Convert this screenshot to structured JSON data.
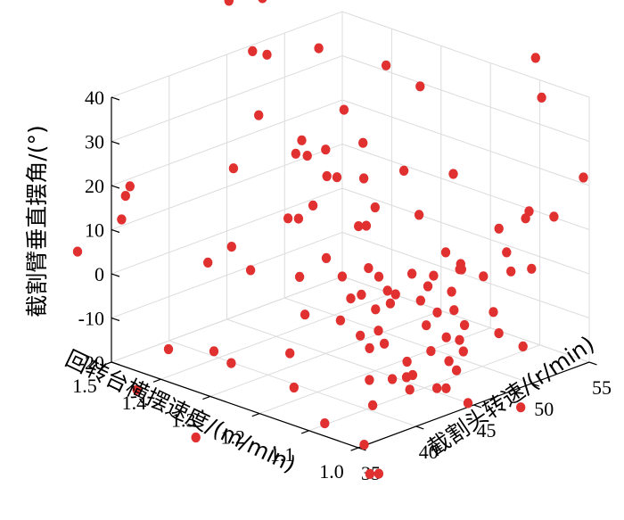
{
  "chart_data": {
    "type": "scatter3d",
    "x_axis": {
      "label": "截割头转速/(r/min)",
      "range": [
        35,
        55
      ],
      "ticks": [
        35,
        40,
        45,
        50,
        55
      ],
      "tick_labels": [
        "35",
        "40",
        "45",
        "50",
        "55"
      ]
    },
    "y_axis": {
      "label": "回转台横摆速度/(m/min)",
      "range": [
        1.0,
        1.5
      ],
      "ticks": [
        1.0,
        1.1,
        1.2,
        1.3,
        1.4,
        1.5
      ],
      "tick_labels": [
        "1.0",
        "1.1",
        "1.2",
        "1.3",
        "1.4",
        "1.5"
      ]
    },
    "z_axis": {
      "label": "截割臂垂直摆角/(°)",
      "range": [
        -20,
        40
      ],
      "ticks": [
        -20,
        -10,
        0,
        10,
        20,
        30,
        40
      ],
      "tick_labels": [
        "-20",
        "-10",
        "0",
        "10",
        "20",
        "30",
        "40"
      ]
    },
    "grid": true,
    "marker_color": "#e03030",
    "points": [
      [
        43.8,
        1.4,
        57.8
      ],
      [
        40.9,
        1.4,
        60.0
      ],
      [
        46.1,
        1.25,
        28.6
      ],
      [
        44.2,
        1.4,
        44.6
      ],
      [
        47.4,
        1.37,
        44.1
      ],
      [
        47.9,
        1.45,
        64.1
      ],
      [
        45.5,
        1.36,
        25.5
      ],
      [
        44.7,
        1.27,
        21.4
      ],
      [
        44.0,
        1.21,
        13.3
      ],
      [
        43.9,
        1.3,
        14.6
      ],
      [
        42.9,
        1.2,
        -1.6
      ],
      [
        42.3,
        1.13,
        -5.6
      ],
      [
        40.5,
        1.03,
        -7.0
      ],
      [
        39.7,
        1.0,
        -8.1
      ],
      [
        40.3,
        1.12,
        -4.4
      ],
      [
        42.1,
        1.04,
        4.9
      ],
      [
        43.6,
        1.19,
        25.3
      ],
      [
        43.3,
        1.16,
        20.2
      ],
      [
        40.6,
        1.16,
        44.9
      ],
      [
        42.8,
        1.09,
        31.7
      ],
      [
        40.2,
        1.08,
        10.6
      ],
      [
        40.5,
        1.02,
        13.3
      ],
      [
        41.2,
        1.21,
        8.8
      ],
      [
        41.3,
        1.18,
        5.7
      ],
      [
        39.2,
        1.3,
        39.6
      ],
      [
        38.5,
        1.19,
        -0.6
      ],
      [
        37.4,
        1.05,
        10.4
      ],
      [
        34.8,
        1.3,
        10.5
      ],
      [
        36.0,
        1.28,
        13.7
      ],
      [
        35.9,
        1.14,
        12.4
      ],
      [
        37.2,
        1.19,
        -8.1
      ],
      [
        37.2,
        1.01,
        -28.4
      ],
      [
        35.5,
        1.0,
        -19.8
      ],
      [
        40.7,
        1.26,
        31.0
      ],
      [
        44.5,
        1.0,
        -19.1
      ],
      [
        45.0,
        1.3,
        26.2
      ],
      [
        38.3,
        1.33,
        27.3
      ],
      [
        40.4,
        1.19,
        28.9
      ],
      [
        39.6,
        1.25,
        17.8
      ],
      [
        37.4,
        1.04,
        26.4
      ],
      [
        38.2,
        1.01,
        9.2
      ],
      [
        34.1,
        1.1,
        28.9
      ],
      [
        34.0,
        1.08,
        44.0
      ],
      [
        31.6,
        1.4,
        19.5
      ],
      [
        30.1,
        1.27,
        -3.4
      ],
      [
        31.9,
        1.39,
        27.1
      ],
      [
        32.8,
        1.42,
        22.9
      ],
      [
        29.5,
        1.44,
        12.7
      ],
      [
        30.8,
        1.35,
        -16.4
      ],
      [
        33.4,
        1.22,
        -7.8
      ],
      [
        36.0,
        1.0,
        -26.9
      ],
      [
        38.1,
        1.02,
        -0.2
      ],
      [
        38.2,
        1.04,
        6.7
      ],
      [
        36.4,
        1.01,
        0.8
      ],
      [
        34.9,
        1.29,
        -9.3
      ],
      [
        32.9,
        1.28,
        -26.5
      ],
      [
        46.0,
        1.05,
        9.0
      ],
      [
        47.7,
        1.12,
        7.3
      ],
      [
        46.3,
        1.16,
        -24.0
      ],
      [
        41.5,
        1.22,
        -29.3
      ],
      [
        41.8,
        1.0,
        -13.1
      ],
      [
        44.3,
        1.12,
        -17.7
      ],
      [
        46.9,
        1.1,
        -10.4
      ],
      [
        49.7,
        1.15,
        -8.9
      ],
      [
        52.3,
        1.12,
        -15.5
      ],
      [
        52.5,
        1.1,
        -0.9
      ],
      [
        51.9,
        1.18,
        -15.6
      ],
      [
        50.5,
        1.21,
        -4.2
      ],
      [
        47.1,
        1.16,
        14.8
      ],
      [
        49.5,
        1.13,
        1.3
      ],
      [
        47.2,
        1.08,
        5.5
      ],
      [
        48.4,
        1.06,
        3.5
      ],
      [
        48.7,
        1.02,
        10.2
      ],
      [
        50.5,
        1.17,
        20.4
      ],
      [
        50.6,
        1.08,
        11.4
      ],
      [
        52.8,
        1.02,
        14.3
      ],
      [
        51.2,
        1.04,
        14.7
      ],
      [
        51.5,
        1.04,
        16.0
      ],
      [
        54.3,
        1.08,
        37.5
      ],
      [
        54.5,
        1.0,
        22.3
      ],
      [
        54.2,
        1.09,
        46.2
      ],
      [
        48.1,
        1.25,
        44.2
      ],
      [
        51.9,
        1.27,
        35.0
      ],
      [
        45.9,
        1.05,
        -8.1
      ],
      [
        46.7,
        1.0,
        -0.6
      ],
      [
        46.5,
        1.08,
        1.1
      ],
      [
        47.3,
        1.15,
        -10.0
      ],
      [
        50.0,
        1.0,
        6.0
      ],
      [
        51.4,
        1.05,
        -14.9
      ],
      [
        43.0,
        1.04,
        -7.4
      ],
      [
        43.7,
        1.02,
        -9.6
      ],
      [
        44.1,
        1.0,
        -7.0
      ],
      [
        43.5,
        1.0,
        -10.7
      ],
      [
        42.3,
        1.15,
        7.8
      ],
      [
        41.8,
        1.1,
        5.1
      ],
      [
        42.6,
        1.0,
        -13.9
      ],
      [
        38.8,
        1.02,
        -8.9
      ],
      [
        38.1,
        1.05,
        -9.6
      ],
      [
        36.7,
        1.17,
        -14.6
      ],
      [
        37.1,
        1.02,
        -13.2
      ],
      [
        42.0,
        1.2,
        -5.7
      ],
      [
        42.5,
        1.1,
        3.6
      ],
      [
        44.4,
        1.06,
        -0.8
      ],
      [
        45.3,
        1.1,
        2.7
      ],
      [
        38.5,
        1.3,
        5.2
      ],
      [
        49.5,
        1.01,
        -25.3
      ],
      [
        43.8,
        1.42,
        45.0
      ]
    ]
  }
}
